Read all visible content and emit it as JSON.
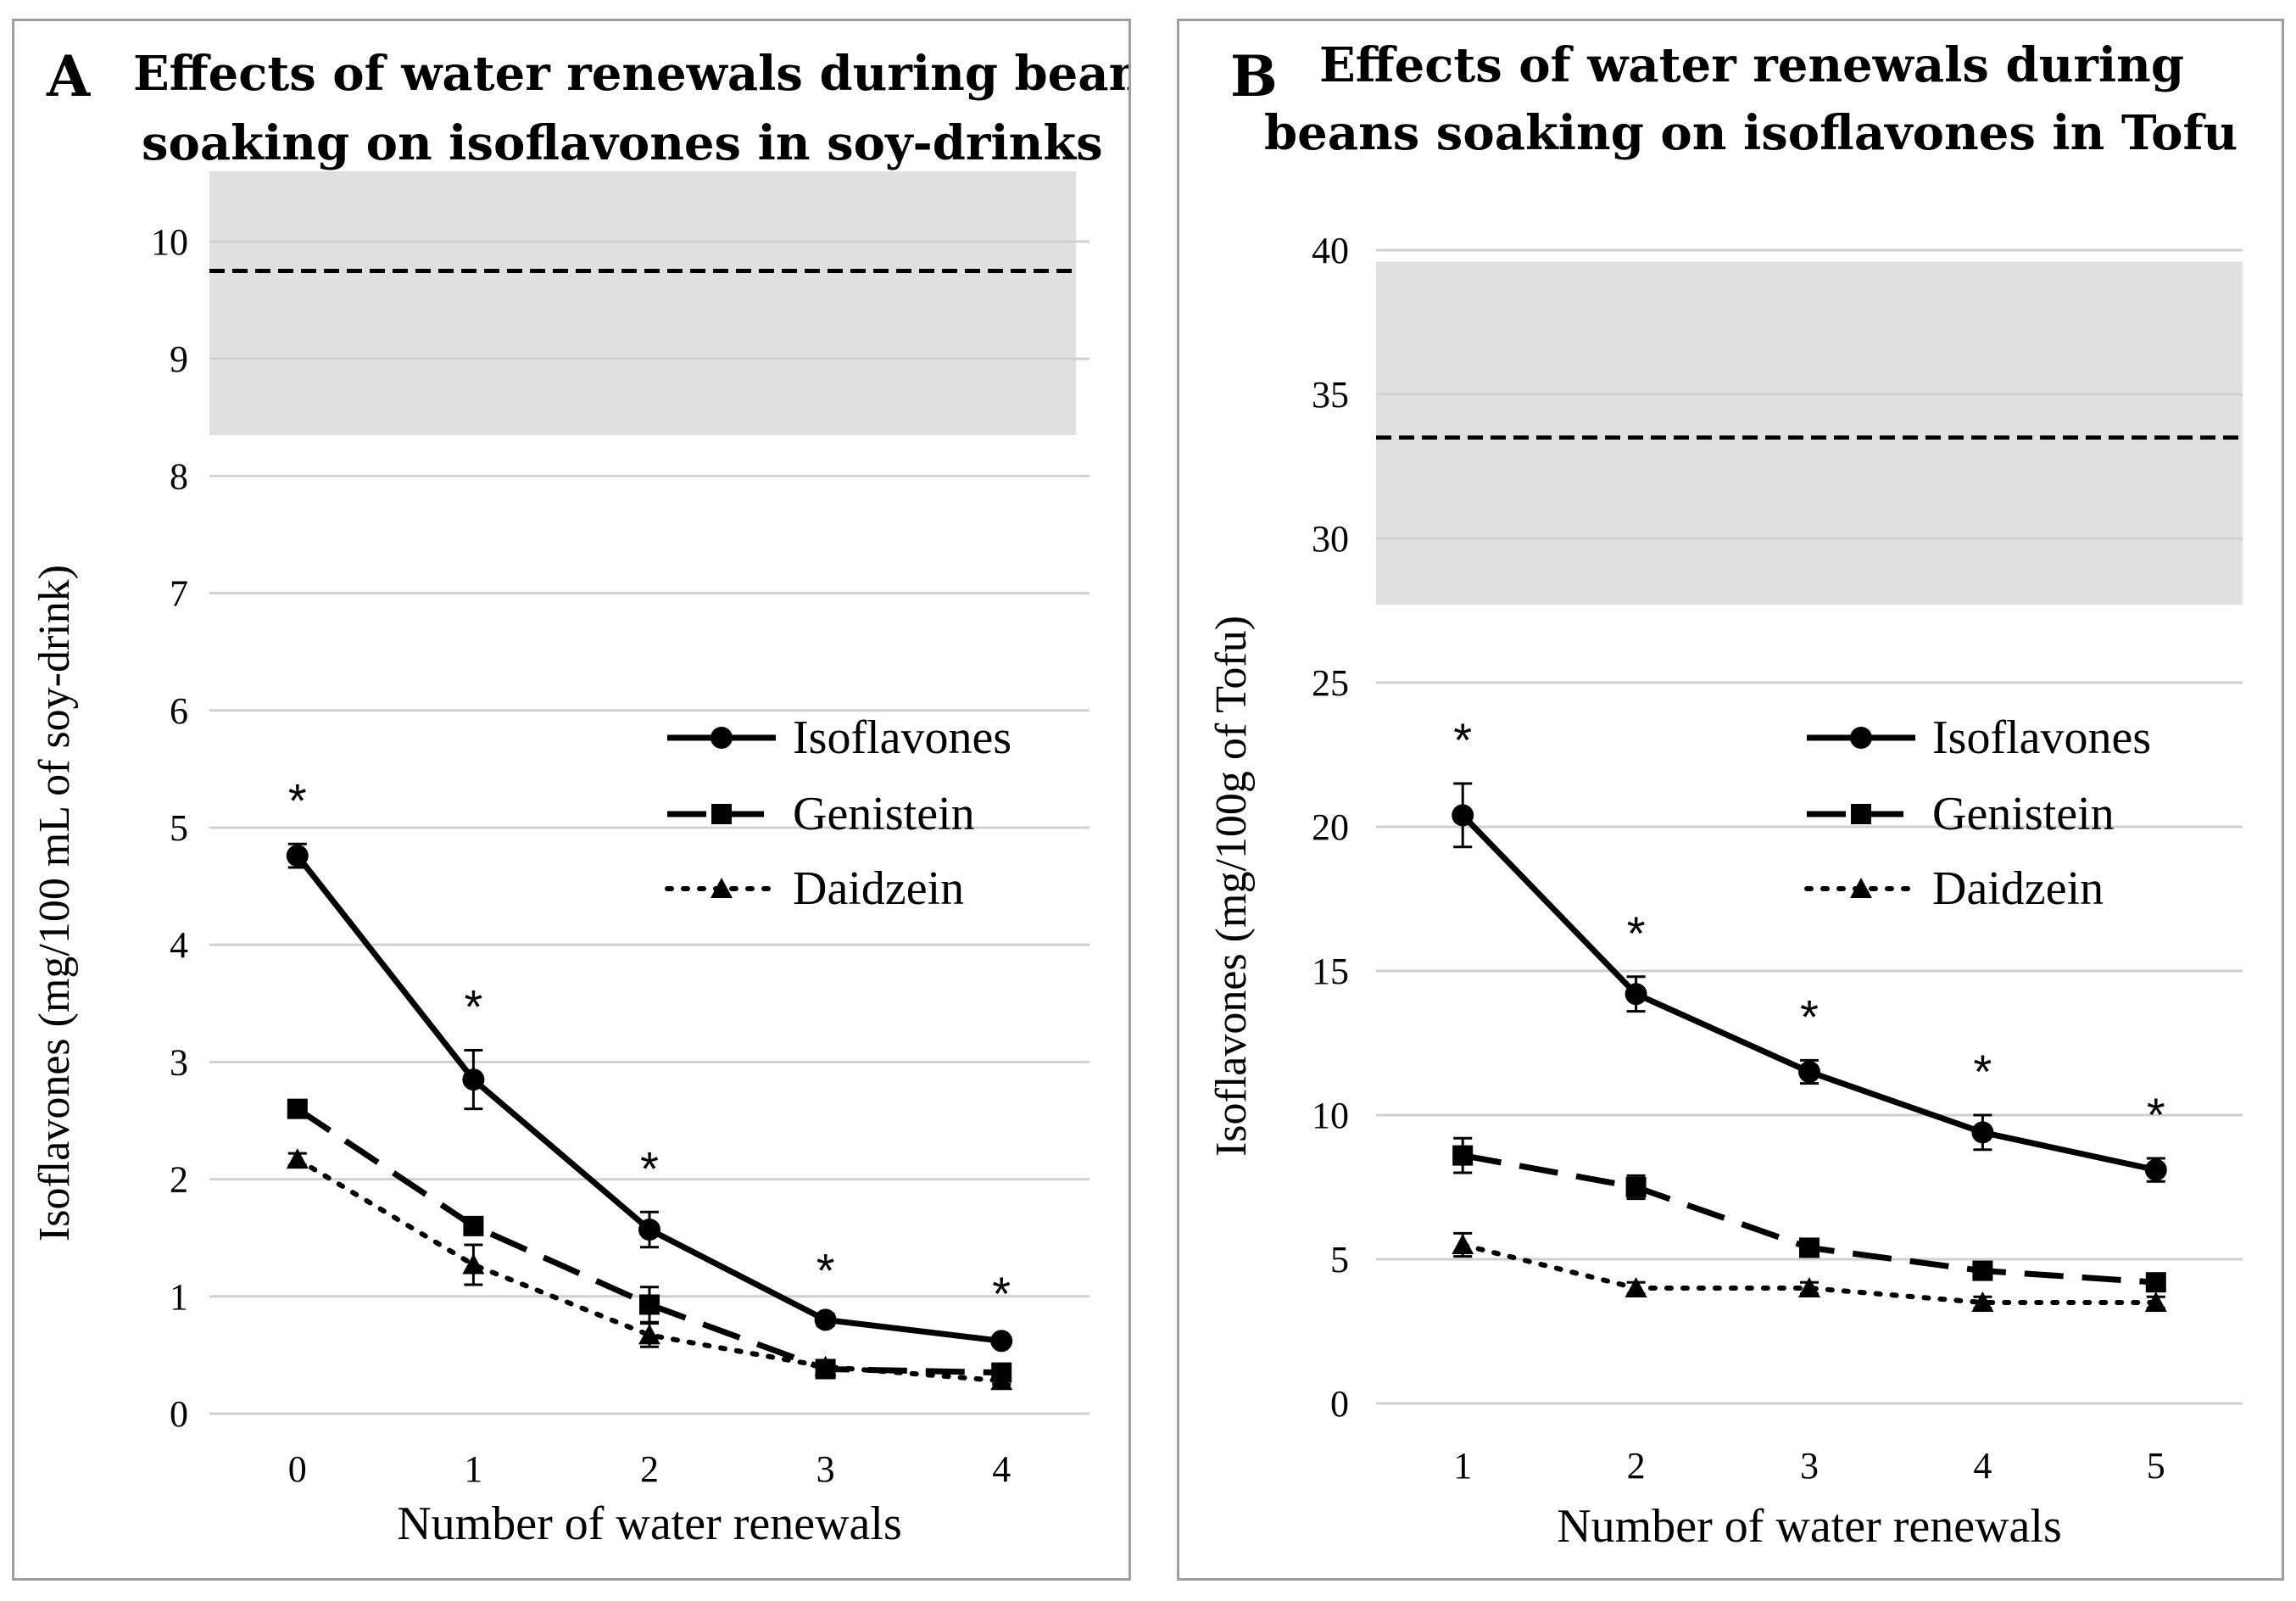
{
  "chart_data": [
    {
      "type": "line",
      "panel_letter": "A",
      "title": [
        "Effects of water renewals during beans",
        "soaking on isoflavones in soy-drinks"
      ],
      "xlabel": "Number of water renewals",
      "ylabel": "Isoflavones (mg/100 mL of soy-drink)",
      "categories": [
        "0",
        "1",
        "2",
        "3",
        "4"
      ],
      "ylim": [
        0,
        10.6
      ],
      "yticks": [
        0,
        1,
        2,
        3,
        4,
        5,
        6,
        7,
        8,
        9,
        10
      ],
      "grid": true,
      "reference_band": {
        "low": 8.35,
        "high": 10.6,
        "line": 9.75
      },
      "series": [
        {
          "name": "Isoflavones",
          "style": "solid",
          "marker": "circle",
          "values": [
            4.76,
            2.85,
            1.57,
            0.8,
            0.62
          ],
          "errors": [
            0.1,
            0.25,
            0.15,
            0.05,
            0.03
          ]
        },
        {
          "name": "Genistein",
          "style": "dashed",
          "marker": "square",
          "values": [
            2.6,
            1.6,
            0.93,
            0.38,
            0.35
          ],
          "errors": [
            0.05,
            0.05,
            0.15,
            0.04,
            0.03
          ]
        },
        {
          "name": "Daidzein",
          "style": "dotted",
          "marker": "triangle",
          "values": [
            2.17,
            1.27,
            0.67,
            0.4,
            0.28
          ],
          "errors": [
            0.05,
            0.17,
            0.1,
            0.04,
            0.03
          ]
        }
      ],
      "significance": [
        "*",
        "*",
        "*",
        "*",
        "*"
      ],
      "legend": "right-middle"
    },
    {
      "type": "line",
      "panel_letter": "B",
      "title": [
        "Effects of water renewals during",
        "beans soaking on isoflavones in Tofu"
      ],
      "xlabel": "Number of water renewals",
      "ylabel": "Isoflavones (mg/100g of Tofu)",
      "categories": [
        "1",
        "2",
        "3",
        "4",
        "5"
      ],
      "ylim": [
        0,
        40
      ],
      "yticks": [
        0,
        5,
        10,
        15,
        20,
        25,
        30,
        35,
        40
      ],
      "grid": true,
      "reference_band": {
        "low": 27.7,
        "high": 39.6,
        "line": 33.5
      },
      "series": [
        {
          "name": "Isoflavones",
          "style": "solid",
          "marker": "circle",
          "values": [
            20.4,
            14.2,
            11.5,
            9.4,
            8.1
          ],
          "errors": [
            1.1,
            0.6,
            0.4,
            0.6,
            0.4
          ]
        },
        {
          "name": "Genistein",
          "style": "dashed",
          "marker": "square",
          "values": [
            8.6,
            7.5,
            5.4,
            4.6,
            4.2
          ],
          "errors": [
            0.6,
            0.4,
            0.2,
            0.2,
            0.2
          ]
        },
        {
          "name": "Daidzein",
          "style": "dotted",
          "marker": "triangle",
          "values": [
            5.5,
            4.0,
            4.0,
            3.5,
            3.5
          ],
          "errors": [
            0.4,
            0.2,
            0.2,
            0.2,
            0.2
          ]
        }
      ],
      "significance": [
        "*",
        "*",
        "*",
        "*",
        "*"
      ],
      "legend": "right-middle"
    }
  ]
}
